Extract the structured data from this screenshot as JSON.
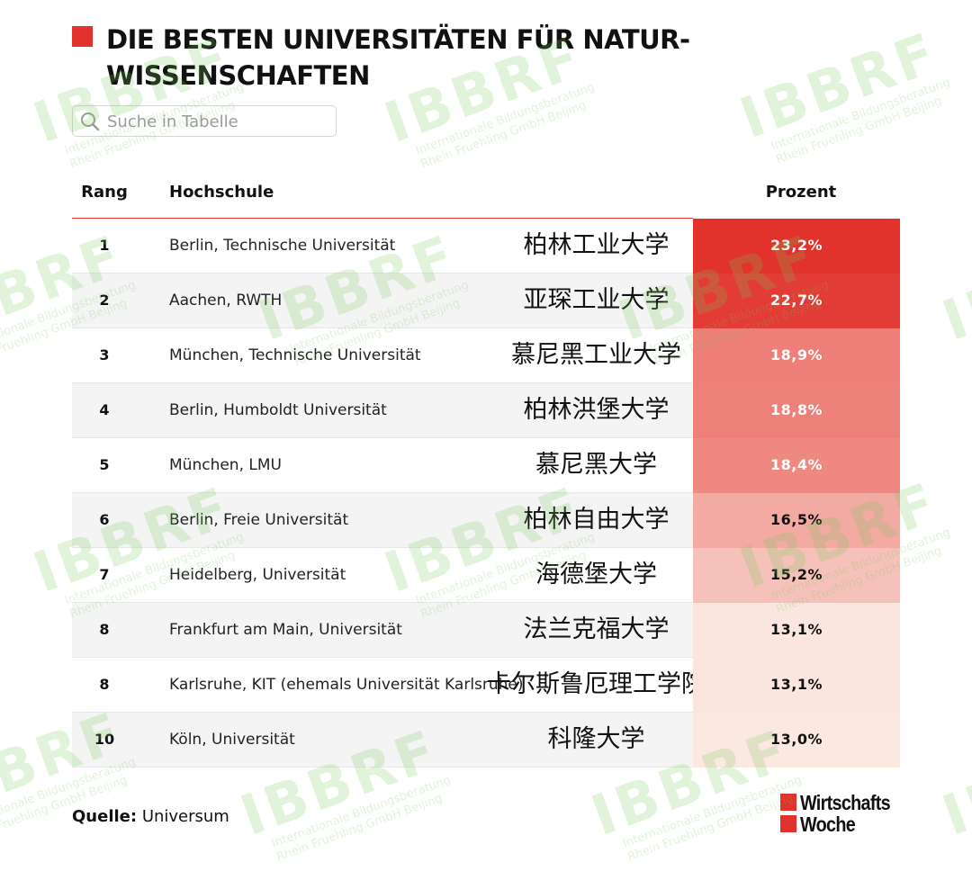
{
  "title": "DIE BESTEN UNIVERSITÄTEN FÜR NATUR-WISSENSCHAFTEN",
  "search": {
    "placeholder": "Suche in Tabelle",
    "icon": "search-icon"
  },
  "columns": {
    "rank": "Rang",
    "school": "Hochschule",
    "percent": "Prozent"
  },
  "rows": [
    {
      "rank": "1",
      "school": "Berlin, Technische Universität",
      "chinese": "柏林工业大学",
      "percent": "23,2%"
    },
    {
      "rank": "2",
      "school": "Aachen, RWTH",
      "chinese": "亚琛工业大学",
      "percent": "22,7%"
    },
    {
      "rank": "3",
      "school": "München, Technische Universität",
      "chinese": "慕尼黑工业大学",
      "percent": "18,9%"
    },
    {
      "rank": "4",
      "school": "Berlin, Humboldt Universität",
      "chinese": "柏林洪堡大学",
      "percent": "18,8%"
    },
    {
      "rank": "5",
      "school": "München, LMU",
      "chinese": "慕尼黑大学",
      "percent": "18,4%"
    },
    {
      "rank": "6",
      "school": "Berlin, Freie Universität",
      "chinese": "柏林自由大学",
      "percent": "16,5%"
    },
    {
      "rank": "7",
      "school": "Heidelberg, Universität",
      "chinese": "海德堡大学",
      "percent": "15,2%"
    },
    {
      "rank": "8",
      "school": "Frankfurt am Main, Universität",
      "chinese": "法兰克福大学",
      "percent": "13,1%"
    },
    {
      "rank": "8",
      "school": "Karlsruhe, KIT (ehemals Universität Karlsruhe)",
      "chinese": "卡尔斯鲁厄理工学院",
      "percent": "13,1%"
    },
    {
      "rank": "10",
      "school": "Köln, Universität",
      "chinese": "科隆大学",
      "percent": "13,0%"
    }
  ],
  "source": {
    "label": "Quelle:",
    "value": "Universum"
  },
  "brand": {
    "line1": "Wirtschafts",
    "line2": "Woche"
  },
  "watermark": {
    "big": "IBBRF",
    "line1": "Internationale Bildungsberatung",
    "line2": "Rhein Fruehling GmbH Beijing"
  },
  "colors": {
    "accent": "#e2322c"
  },
  "chart_data": {
    "type": "table",
    "title": "DIE BESTEN UNIVERSITÄTEN FÜR NATUR-WISSENSCHAFTEN",
    "columns": [
      "Rang",
      "Hochschule",
      "Prozent"
    ],
    "categories": [
      "Berlin, Technische Universität",
      "Aachen, RWTH",
      "München, Technische Universität",
      "Berlin, Humboldt Universität",
      "München, LMU",
      "Berlin, Freie Universität",
      "Heidelberg, Universität",
      "Frankfurt am Main, Universität",
      "Karlsruhe, KIT (ehemals Universität Karlsruhe)",
      "Köln, Universität"
    ],
    "ranks": [
      1,
      2,
      3,
      4,
      5,
      6,
      7,
      8,
      8,
      10
    ],
    "values": [
      23.2,
      22.7,
      18.9,
      18.8,
      18.4,
      16.5,
      15.2,
      13.1,
      13.1,
      13.0
    ],
    "unit": "%"
  }
}
